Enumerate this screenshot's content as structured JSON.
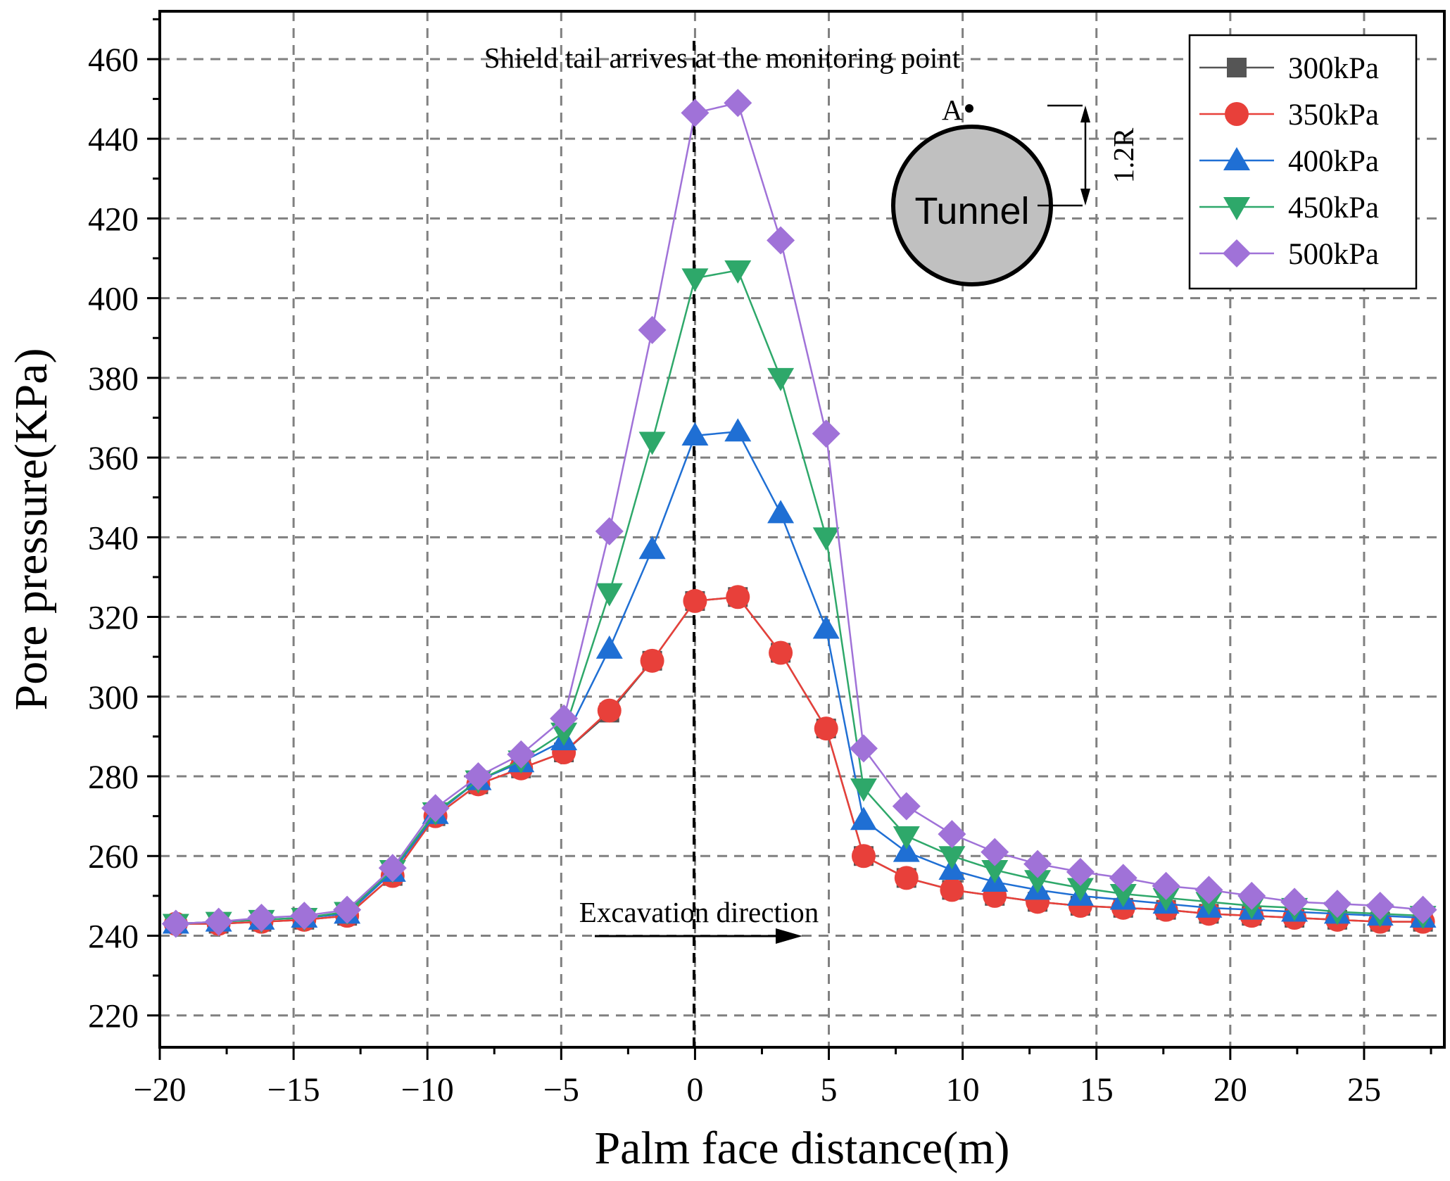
{
  "chart_data": {
    "type": "line",
    "xlabel": "Palm face distance(m)",
    "ylabel": "Pore pressure(KPa)",
    "xlim": [
      -20,
      28
    ],
    "ylim": [
      212,
      472
    ],
    "xticks": [
      -20,
      -15,
      -10,
      -5,
      0,
      5,
      10,
      15,
      20,
      25
    ],
    "xtick_labels": [
      "−20",
      "−15",
      "−10",
      "−5",
      "0",
      "5",
      "10",
      "15",
      "20",
      "25"
    ],
    "yticks": [
      220,
      240,
      260,
      280,
      300,
      320,
      340,
      360,
      380,
      400,
      420,
      440,
      460
    ],
    "ytick_labels": [
      "220",
      "240",
      "260",
      "280",
      "300",
      "320",
      "340",
      "360",
      "380",
      "400",
      "420",
      "440",
      "460"
    ],
    "grid": true,
    "legend_position": "top-right",
    "x": [
      -19.4,
      -17.8,
      -16.2,
      -14.6,
      -13.0,
      -11.3,
      -9.7,
      -8.1,
      -6.5,
      -4.9,
      -3.2,
      -1.6,
      0,
      1.6,
      3.2,
      4.9,
      6.3,
      7.9,
      9.6,
      11.2,
      12.8,
      14.4,
      16.0,
      17.6,
      19.2,
      20.8,
      22.4,
      24.0,
      25.6,
      27.2
    ],
    "series": [
      {
        "name": "300kPa",
        "color": "#555555",
        "marker": "square",
        "values": [
          243,
          243,
          243.5,
          244,
          245,
          255,
          270,
          278,
          282,
          286,
          296,
          309,
          324,
          325,
          311,
          292,
          260,
          254.5,
          251.5,
          250,
          248.5,
          247.5,
          247,
          246.5,
          245.5,
          245,
          244.5,
          244,
          243.5,
          243.5
        ]
      },
      {
        "name": "350kPa",
        "color": "#e8403a",
        "marker": "circle",
        "values": [
          243,
          243,
          243.5,
          244,
          245,
          255,
          270,
          278,
          282,
          286,
          296.5,
          309,
          324,
          325,
          311,
          292,
          260,
          254.5,
          251.5,
          250,
          248.5,
          247.5,
          247,
          246.5,
          245.5,
          245,
          244.5,
          244,
          243.5,
          243.5
        ]
      },
      {
        "name": "400kPa",
        "color": "#1f6fd4",
        "marker": "triangle-up",
        "values": [
          243,
          243.5,
          244,
          244.5,
          245.5,
          256,
          270.5,
          279,
          283.5,
          289,
          312,
          337,
          365.5,
          366.5,
          346,
          317,
          269,
          261,
          256.5,
          253.5,
          251.5,
          250,
          249,
          248,
          247,
          246.5,
          246,
          245.5,
          245,
          244.5
        ]
      },
      {
        "name": "450kPa",
        "color": "#2ea86a",
        "marker": "triangle-down",
        "values": [
          243,
          243.5,
          244,
          244.5,
          246,
          256.5,
          271,
          279,
          284,
          291,
          326,
          364,
          405,
          407,
          380,
          340,
          277,
          265,
          260,
          256.5,
          254,
          252,
          250.5,
          249.5,
          248.5,
          247.5,
          247,
          246,
          245.5,
          245
        ]
      },
      {
        "name": "500kPa",
        "color": "#a072d8",
        "marker": "diamond",
        "values": [
          243,
          243.5,
          244.5,
          245,
          246.5,
          257,
          272,
          280,
          285.5,
          294.5,
          341.5,
          392,
          446.5,
          449,
          414.5,
          366,
          287,
          272.5,
          265.5,
          261,
          258,
          256,
          254.5,
          252.5,
          251.5,
          250,
          248.5,
          248,
          247.5,
          246.5
        ]
      }
    ],
    "annotations": {
      "shield_tail": "Shield tail arrives at the monitoring point",
      "excavation": "Excavation direction",
      "tunnel": "Tunnel",
      "point_label": "A",
      "dimension": "1.2R"
    }
  }
}
